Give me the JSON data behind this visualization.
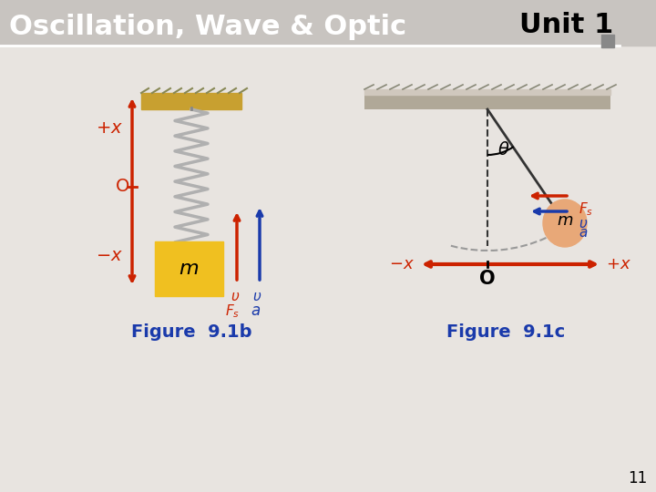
{
  "title_left": "Oscillation, Wave & Optic",
  "title_right": "Unit 1",
  "fig_label_b": "Figure  9.1b",
  "fig_label_c": "Figure  9.1c",
  "page_number": "11",
  "bg_color": "#e8e4e0",
  "header_bg": "#d0ccc8",
  "title_color_left": "#ffffff",
  "title_color_right": "#000000",
  "label_color": "#1a3aab",
  "red_color": "#cc2200",
  "blue_color": "#1a3aab",
  "orange_color": "#e6a020",
  "spring_color": "#a0a0a0"
}
